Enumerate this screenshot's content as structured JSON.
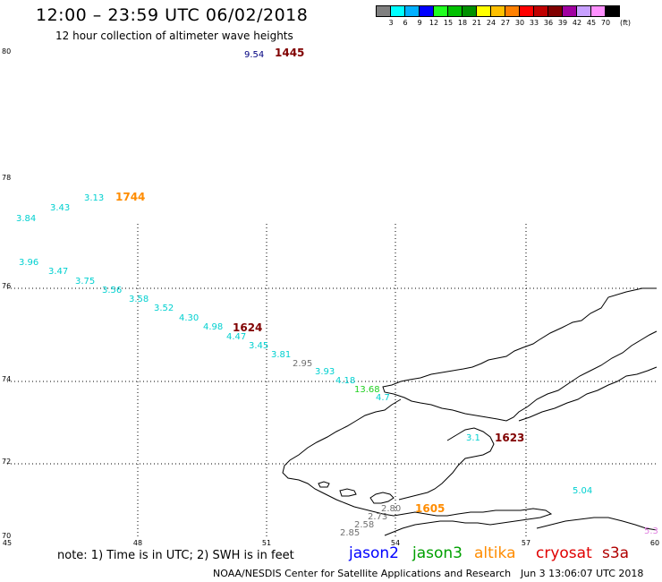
{
  "header": {
    "title": "12:00 – 23:59 UTC 06/02/2018",
    "subtitle": "12 hour collection of altimeter wave heights"
  },
  "legend": {
    "colors": [
      "#808080",
      "#00ffff",
      "#00b0ff",
      "#0000ff",
      "#20ff20",
      "#00c000",
      "#009000",
      "#ffff00",
      "#ffc000",
      "#ff8000",
      "#ff0000",
      "#c00000",
      "#800000",
      "#a000a0",
      "#c8a0ff",
      "#ff90ff",
      "#000000"
    ],
    "labels": [
      "3",
      "6",
      "9",
      "12",
      "15",
      "18",
      "21",
      "24",
      "27",
      "30",
      "33",
      "36",
      "39",
      "42",
      "45",
      "70",
      "(ft)"
    ]
  },
  "axes": {
    "lat_labels": [
      "80",
      "78",
      "76",
      "74",
      "72",
      "70"
    ],
    "lon_labels": [
      "45",
      "48",
      "51",
      "54",
      "57",
      "60"
    ]
  },
  "observations": [
    {
      "text": "9.54",
      "color": "#000080"
    },
    {
      "text": "1445",
      "color": "#800000"
    },
    {
      "text": "3.13",
      "color": "#00d0d0"
    },
    {
      "text": "1744",
      "color": "#ff8c00"
    },
    {
      "text": "3.43",
      "color": "#00d0d0"
    },
    {
      "text": "3.84",
      "color": "#00d0d0"
    },
    {
      "text": "3.96",
      "color": "#00d0d0"
    },
    {
      "text": "3.47",
      "color": "#00d0d0"
    },
    {
      "text": "3.75",
      "color": "#00d0d0"
    },
    {
      "text": "3.56",
      "color": "#00d0d0"
    },
    {
      "text": "3.58",
      "color": "#00d0d0"
    },
    {
      "text": "3.52",
      "color": "#00d0d0"
    },
    {
      "text": "4.30",
      "color": "#00d0d0"
    },
    {
      "text": "4.98",
      "color": "#00d0d0"
    },
    {
      "text": "1624",
      "color": "#800000"
    },
    {
      "text": "4.47",
      "color": "#00d0d0"
    },
    {
      "text": "3.45",
      "color": "#00d0d0"
    },
    {
      "text": "3.81",
      "color": "#00d0d0"
    },
    {
      "text": "2.95",
      "color": "#707070"
    },
    {
      "text": "3.93",
      "color": "#00d0d0"
    },
    {
      "text": "4.18",
      "color": "#00d0d0"
    },
    {
      "text": "13.68",
      "color": "#20d020"
    },
    {
      "text": "4.7",
      "color": "#00d0d0"
    },
    {
      "text": "3.1",
      "color": "#00d0d0"
    },
    {
      "text": "1623",
      "color": "#800000"
    },
    {
      "text": "5.04",
      "color": "#00d0d0"
    },
    {
      "text": "1605",
      "color": "#ff8c00"
    },
    {
      "text": "2.80",
      "color": "#707070"
    },
    {
      "text": "2.73",
      "color": "#707070"
    },
    {
      "text": "2.58",
      "color": "#707070"
    },
    {
      "text": "2.85",
      "color": "#707070"
    },
    {
      "text": "5.3",
      "color": "#e080e0"
    }
  ],
  "note": "note:  1) Time is in UTC;  2) SWH is in feet",
  "satellites": [
    {
      "name": "jason2",
      "color": "#0000ff"
    },
    {
      "name": "jason3",
      "color": "#00a000"
    },
    {
      "name": "altika",
      "color": "#ff8c00"
    },
    {
      "name": "cryosat",
      "color": "#e00000"
    },
    {
      "name": "s3a",
      "color": "#b00000"
    }
  ],
  "footer": {
    "credit": "NOAA/NESDIS Center for Satellite Applications and Research",
    "timestamp": "Jun  3 13:06:07 UTC 2018"
  }
}
